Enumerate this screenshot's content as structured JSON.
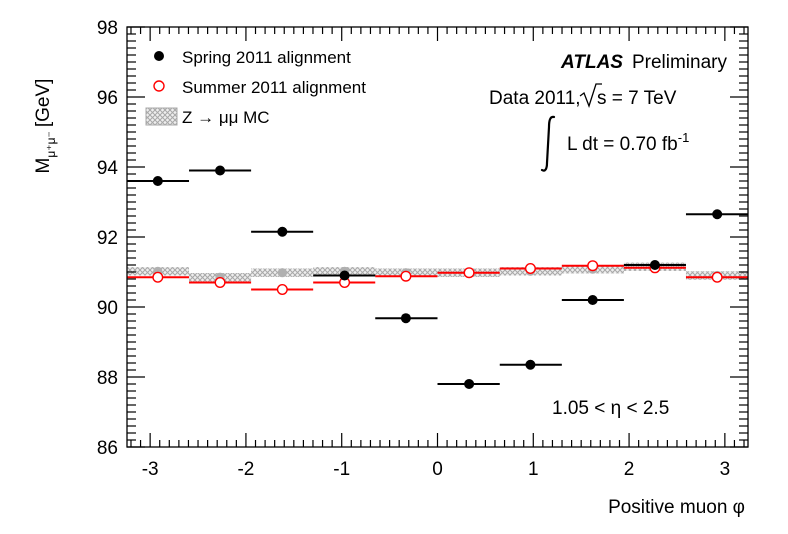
{
  "chart_data": {
    "type": "scatter",
    "title": "",
    "xlabel": "Positive muon φ",
    "ylabel": "M",
    "ylabel_sub": "μ⁺μ⁻",
    "ylabel_unit": "[GeV]",
    "xlim": [
      -3.2416,
      3.2416
    ],
    "ylim": [
      86,
      98
    ],
    "x_ticks": [
      -3,
      -2,
      -1,
      0,
      1,
      2,
      3
    ],
    "x_tick_labels": [
      "-3",
      "-2",
      "-1",
      "0",
      "1",
      "2",
      "3"
    ],
    "y_ticks": [
      86,
      88,
      90,
      92,
      94,
      96,
      98
    ],
    "y_tick_labels": [
      "86",
      "88",
      "90",
      "92",
      "94",
      "96",
      "98"
    ],
    "bin_edges": [
      -3.2416,
      -2.594,
      -1.946,
      -1.298,
      -0.65,
      0.0,
      0.65,
      1.298,
      1.946,
      2.594,
      3.2416
    ],
    "bin_centers": [
      -2.92,
      -2.27,
      -1.62,
      -0.97,
      -0.33,
      0.33,
      0.97,
      1.62,
      2.27,
      2.92
    ],
    "series": [
      {
        "name": "Spring 2011 alignment",
        "color": "#000000",
        "marker": "filled-circle",
        "values": [
          93.6,
          93.9,
          92.15,
          90.9,
          89.68,
          87.8,
          88.35,
          90.2,
          91.2,
          92.65
        ]
      },
      {
        "name": "Summer 2011 alignment",
        "color": "#ff0000",
        "marker": "open-circle",
        "values": [
          90.85,
          90.7,
          90.5,
          90.7,
          90.88,
          90.98,
          91.1,
          91.18,
          91.12,
          90.85
        ]
      },
      {
        "name": "Z → μμ MC",
        "color": "#b0b0b0",
        "marker": "hatched-band",
        "values": [
          91.02,
          90.85,
          90.98,
          91.02,
          90.98,
          90.98,
          91.02,
          91.08,
          91.15,
          90.9
        ],
        "band_halfwidth": 0.12
      }
    ],
    "legend": [
      {
        "label": "Spring 2011 alignment",
        "symbol": "filled-circle"
      },
      {
        "label": "Summer 2011 alignment",
        "symbol": "open-circle"
      },
      {
        "label": "Z → μμ MC",
        "symbol": "hatched-band"
      }
    ],
    "legend_position": "top-left",
    "annotations": {
      "atlas": "ATLAS",
      "preliminary": "Preliminary",
      "data_text": "Data 2011,",
      "sqrt_s": "s = 7 TeV",
      "lumi_text": "L dt = 0.70 fb",
      "lumi_exp": "-1",
      "eta_range": "1.05 < η < 2.5"
    }
  }
}
